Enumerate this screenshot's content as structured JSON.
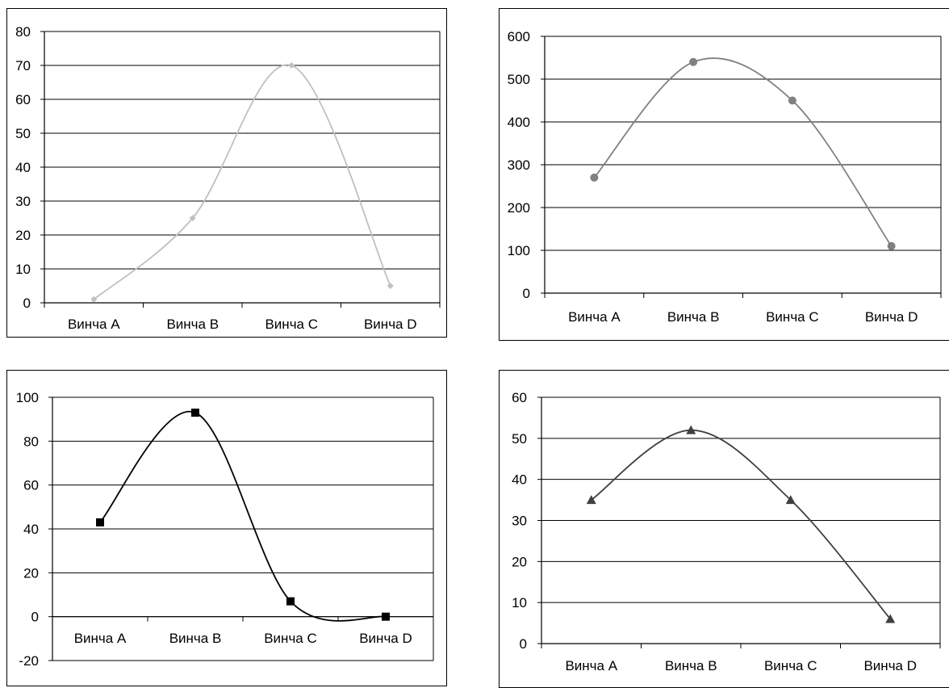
{
  "chart_data": [
    {
      "type": "line",
      "categories": [
        "Винча A",
        "Винча B",
        "Винча C",
        "Винча D"
      ],
      "series": [
        {
          "values": [
            1,
            25,
            70,
            5
          ]
        }
      ],
      "ylim": [
        0,
        80
      ],
      "yticks": [
        0,
        10,
        20,
        30,
        40,
        50,
        60,
        70,
        80
      ],
      "grid": true,
      "smooth": true,
      "marker": "diamond",
      "color": "#c0c0c0"
    },
    {
      "type": "line",
      "categories": [
        "Винча A",
        "Винча B",
        "Винча C",
        "Винча D"
      ],
      "series": [
        {
          "values": [
            270,
            540,
            450,
            110
          ]
        }
      ],
      "ylim": [
        0,
        600
      ],
      "yticks": [
        0,
        100,
        200,
        300,
        400,
        500,
        600
      ],
      "grid": true,
      "smooth": true,
      "marker": "circle",
      "color": "#808080"
    },
    {
      "type": "line",
      "categories": [
        "Винча A",
        "Винча B",
        "Винча C",
        "Винча D"
      ],
      "series": [
        {
          "values": [
            43,
            93,
            7,
            0
          ]
        }
      ],
      "ylim": [
        -20,
        100
      ],
      "yticks": [
        -20,
        0,
        20,
        40,
        60,
        80,
        100
      ],
      "grid": true,
      "smooth": true,
      "marker": "square",
      "color": "#000000"
    },
    {
      "type": "line",
      "categories": [
        "Винча A",
        "Винча B",
        "Винча C",
        "Винча D"
      ],
      "series": [
        {
          "values": [
            35,
            52,
            35,
            6
          ]
        }
      ],
      "ylim": [
        0,
        60
      ],
      "yticks": [
        0,
        10,
        20,
        30,
        40,
        50,
        60
      ],
      "grid": true,
      "smooth": true,
      "marker": "triangle",
      "color": "#404040"
    }
  ]
}
